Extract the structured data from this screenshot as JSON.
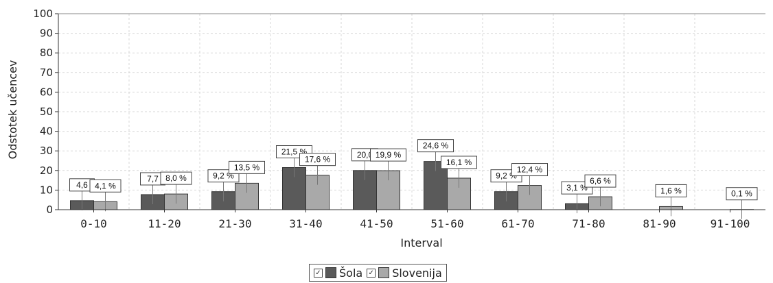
{
  "colors": {
    "sola": "#5a5a5a",
    "slovenija": "#a9a9a9",
    "grid": "#d7d7d7"
  },
  "legend": {
    "items": [
      {
        "key": "sola",
        "label": "Šola",
        "checked": true
      },
      {
        "key": "slovenija",
        "label": "Slovenija",
        "checked": true
      }
    ]
  },
  "chart_data": {
    "type": "bar",
    "xlabel": "Interval",
    "ylabel": "Odstotek učencev",
    "ylim": [
      0,
      100
    ],
    "yticks": [
      0,
      10,
      20,
      30,
      40,
      50,
      60,
      70,
      80,
      90,
      100
    ],
    "grid": true,
    "legend_position": "bottom",
    "categories": [
      "0-10",
      "11-20",
      "21-30",
      "31-40",
      "41-50",
      "51-60",
      "61-70",
      "71-80",
      "81-90",
      "91-100"
    ],
    "series": [
      {
        "name": "Šola",
        "color": "#5a5a5a",
        "values": [
          4.6,
          7.7,
          9.2,
          21.5,
          20.0,
          24.6,
          9.2,
          3.1,
          0,
          0
        ],
        "labels": [
          "4,6",
          "7,7",
          "9,2 %",
          "21,5 %",
          "20,0",
          "24,6 %",
          "9,2 %",
          "3,1 %",
          "",
          ""
        ]
      },
      {
        "name": "Slovenija",
        "color": "#a9a9a9",
        "values": [
          4.1,
          8.0,
          13.5,
          17.6,
          19.9,
          16.1,
          12.4,
          6.6,
          1.6,
          0.1
        ],
        "labels": [
          "4,1 %",
          "8,0 %",
          "13,5 %",
          "17,6 %",
          "19,9 %",
          "16,1 %",
          "12,4 %",
          "6,6 %",
          "1,6 %",
          "0,1 %"
        ]
      }
    ]
  }
}
